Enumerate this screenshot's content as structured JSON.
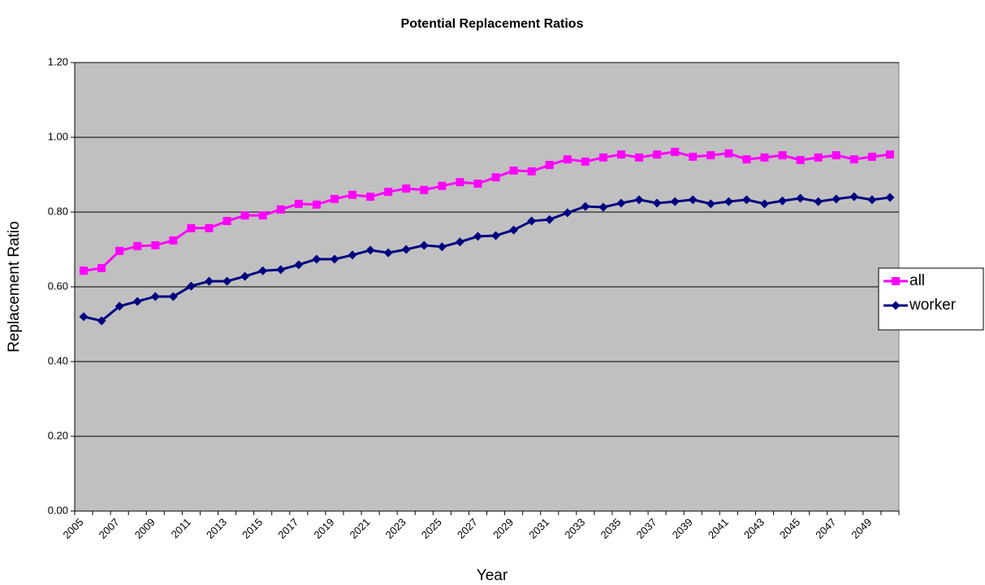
{
  "chart_data": {
    "type": "line",
    "title": "Potential Replacement Ratios",
    "x_label": "Year",
    "y_label": "Replacement Ratio",
    "categories": [
      "2005",
      null,
      "2007",
      null,
      "2009",
      null,
      "2011",
      null,
      "2013",
      null,
      "2015",
      null,
      "2017",
      null,
      "2019",
      null,
      "2021",
      null,
      "2023",
      null,
      "2025",
      null,
      "2027",
      null,
      "2029",
      null,
      "2031",
      null,
      "2033",
      null,
      "2035",
      null,
      "2037",
      null,
      "2039",
      null,
      "2041",
      null,
      "2043",
      null,
      "2045",
      null,
      "2047",
      null,
      "2049",
      null
    ],
    "series": [
      {
        "name": "all",
        "color": "#ff00ff",
        "marker": "square",
        "values": [
          0.643,
          0.65,
          0.696,
          0.709,
          0.711,
          0.724,
          0.757,
          0.757,
          0.776,
          0.791,
          0.791,
          0.807,
          0.822,
          0.82,
          0.835,
          0.846,
          0.841,
          0.854,
          0.863,
          0.859,
          0.87,
          0.88,
          0.876,
          0.893,
          0.911,
          0.909,
          0.926,
          0.941,
          0.935,
          0.946,
          0.954,
          0.946,
          0.954,
          0.961,
          0.948,
          0.952,
          0.957,
          0.941,
          0.946,
          0.952,
          0.939,
          0.946,
          0.952,
          0.941,
          0.948,
          0.954
        ]
      },
      {
        "name": "worker",
        "color": "#000080",
        "marker": "diamond",
        "values": [
          0.52,
          0.509,
          0.548,
          0.561,
          0.574,
          0.574,
          0.602,
          0.615,
          0.615,
          0.628,
          0.643,
          0.646,
          0.659,
          0.674,
          0.674,
          0.685,
          0.698,
          0.691,
          0.7,
          0.711,
          0.707,
          0.72,
          0.735,
          0.737,
          0.752,
          0.776,
          0.78,
          0.798,
          0.815,
          0.813,
          0.824,
          0.833,
          0.824,
          0.828,
          0.833,
          0.822,
          0.828,
          0.833,
          0.822,
          0.83,
          0.837,
          0.828,
          0.835,
          0.841,
          0.833,
          0.839
        ]
      }
    ],
    "ylim": [
      0,
      1.2
    ],
    "yticks": [
      {
        "value": 0,
        "label": "0.00"
      },
      {
        "value": 0.2,
        "label": "0.20"
      },
      {
        "value": 0.4,
        "label": "0.40"
      },
      {
        "value": 0.6,
        "label": "0.60"
      },
      {
        "value": 0.8,
        "label": "0.80"
      },
      {
        "value": 1.0,
        "label": "1.00"
      },
      {
        "value": 1.2,
        "label": "1.20"
      }
    ],
    "grid": true,
    "legend": "right",
    "plot_background": "#c0c0c0"
  }
}
